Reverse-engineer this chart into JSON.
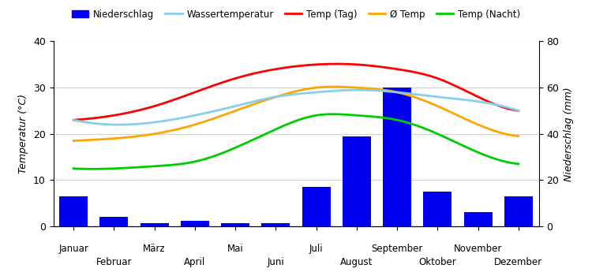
{
  "months": [
    "Januar",
    "Februar",
    "März",
    "April",
    "Mai",
    "Juni",
    "Juli",
    "August",
    "September",
    "Oktober",
    "November",
    "Dezember"
  ],
  "precipitation_mm": [
    13,
    4,
    1.5,
    2.5,
    1.5,
    1.5,
    17,
    39,
    60,
    15,
    6,
    13
  ],
  "temp_day": [
    23,
    24,
    26,
    29,
    32,
    34,
    35,
    35,
    34,
    32,
    28,
    25
  ],
  "temp_avg": [
    18.5,
    19,
    20,
    22,
    25,
    28,
    30,
    30,
    29,
    26,
    22,
    19.5
  ],
  "temp_night": [
    12.5,
    12.5,
    13,
    14,
    17,
    21,
    24,
    24,
    23,
    20,
    16,
    13.5
  ],
  "water_temp": [
    23,
    22,
    22.5,
    24,
    26,
    28,
    29,
    29.5,
    29,
    28,
    27,
    25
  ],
  "bar_color": "#0000ee",
  "color_water": "#87CEEB",
  "color_day": "#ff0000",
  "color_avg": "#FFA500",
  "color_night": "#00cc00",
  "ylabel_left": "Temperatur (°C)",
  "ylabel_right": "Niederschlag (mm)",
  "ylim_left": [
    0,
    40
  ],
  "ylim_right": [
    0,
    80
  ],
  "yticks_left": [
    0,
    10,
    20,
    30,
    40
  ],
  "yticks_right": [
    0,
    20,
    40,
    60,
    80
  ],
  "legend_labels": [
    "Niederschlag",
    "Wassertemperatur",
    "Temp (Tag)",
    "Ø Temp",
    "Temp (Nacht)"
  ]
}
